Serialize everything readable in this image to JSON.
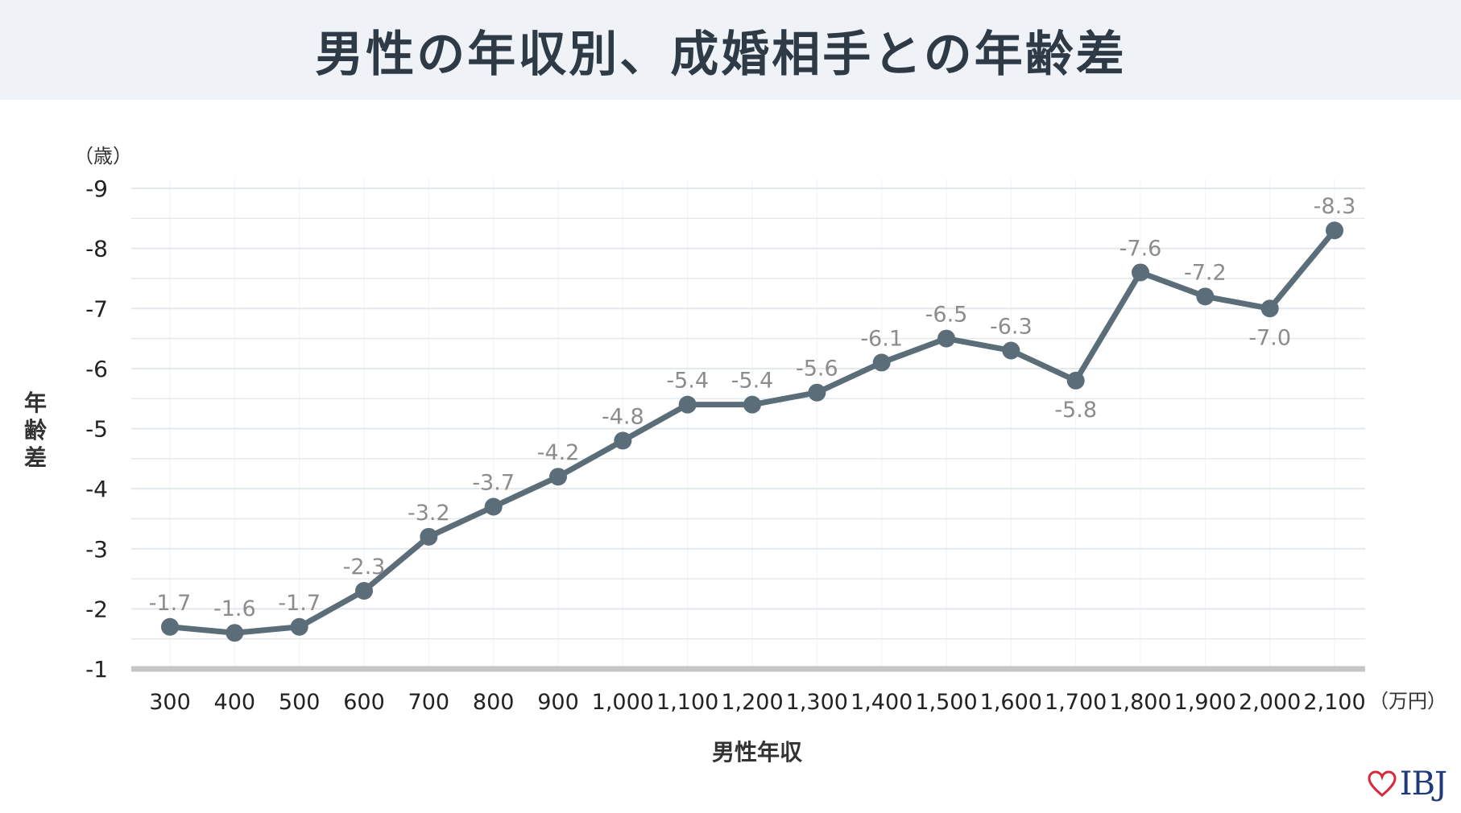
{
  "title": "男性の年収別、成婚相手との年齢差",
  "logo": {
    "text": "IBJ",
    "icon": "heart-icon",
    "icon_color": "#d9283a",
    "text_color": "#1f3a7a"
  },
  "colors": {
    "line": "#5a6d79",
    "grid": "#e3e8ec",
    "baseline": "#c6c6c6",
    "title_bg": "#eff3f8",
    "label": "#8c8c8c"
  },
  "chart_data": {
    "type": "line",
    "y_unit": "（歳）",
    "x_unit": "（万円）",
    "ylabel": "年齢差",
    "xlabel": "男性年収",
    "ylim": [
      -1,
      -9
    ],
    "yticks": [
      "-9",
      "-8",
      "-7",
      "-6",
      "-5",
      "-4",
      "-3",
      "-2",
      "-1"
    ],
    "categories": [
      "300",
      "400",
      "500",
      "600",
      "700",
      "800",
      "900",
      "1,000",
      "1,100",
      "1,200",
      "1,300",
      "1,400",
      "1,500",
      "1,600",
      "1,700",
      "1,800",
      "1,900",
      "2,000",
      "2,100"
    ],
    "values": [
      -1.7,
      -1.6,
      -1.7,
      -2.3,
      -3.2,
      -3.7,
      -4.2,
      -4.8,
      -5.4,
      -5.4,
      -5.6,
      -6.1,
      -6.5,
      -6.3,
      -5.8,
      -7.6,
      -7.2,
      -7.0,
      -8.3
    ],
    "labels": [
      "-1.7",
      "-1.6",
      "-1.7",
      "-2.3",
      "-3.2",
      "-3.7",
      "-4.2",
      "-4.8",
      "-5.4",
      "-5.4",
      "-5.6",
      "-6.1",
      "-6.5",
      "-6.3",
      "-5.8",
      "-7.6",
      "-7.2",
      "-7.0",
      "-8.3"
    ],
    "label_below": [
      14,
      17
    ],
    "grid": true,
    "legend": "none"
  }
}
